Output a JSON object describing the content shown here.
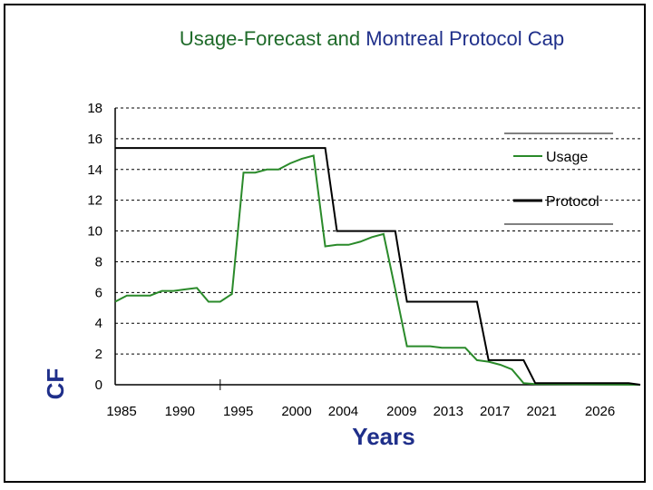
{
  "chart_data": {
    "type": "line",
    "title": "Usage-Forecast and Montreal Protocol Cap",
    "title_parts": [
      {
        "text": "Usage-Forecast and ",
        "color": "#1f6b2a"
      },
      {
        "text": "Montreal Protocol Cap",
        "color": "#1f2f8a"
      }
    ],
    "xlabel": "Years",
    "ylabel": "CF",
    "xlim": [
      1985,
      2030
    ],
    "ylim": [
      0,
      18
    ],
    "yticks": [
      0,
      2,
      4,
      6,
      8,
      10,
      12,
      14,
      16,
      18
    ],
    "xtick_labels": [
      {
        "x": 1985,
        "label": "1985"
      },
      {
        "x": 1990,
        "label": "1990"
      },
      {
        "x": 1995,
        "label": "1995"
      },
      {
        "x": 2000,
        "label": "2000"
      },
      {
        "x": 2004,
        "label": "2004"
      },
      {
        "x": 2009,
        "label": "2009"
      },
      {
        "x": 2013,
        "label": "2013"
      },
      {
        "x": 2017,
        "label": "2017"
      },
      {
        "x": 2021,
        "label": "2021"
      },
      {
        "x": 2026,
        "label": "2026"
      }
    ],
    "grid": true,
    "legend_position": "right",
    "series": [
      {
        "name": "Usage",
        "color": "#2a8a2a",
        "points": [
          [
            1985,
            5.4
          ],
          [
            1986,
            5.8
          ],
          [
            1987,
            5.8
          ],
          [
            1988,
            5.8
          ],
          [
            1989,
            6.1
          ],
          [
            1990,
            6.1
          ],
          [
            1991,
            6.2
          ],
          [
            1992,
            6.3
          ],
          [
            1993,
            5.4
          ],
          [
            1994,
            5.4
          ],
          [
            1995,
            5.9
          ],
          [
            1996,
            13.8
          ],
          [
            1997,
            13.8
          ],
          [
            1998,
            14.0
          ],
          [
            1999,
            14.0
          ],
          [
            2000,
            14.4
          ],
          [
            2001,
            14.7
          ],
          [
            2002,
            14.9
          ],
          [
            2003,
            9.0
          ],
          [
            2004,
            9.1
          ],
          [
            2005,
            9.1
          ],
          [
            2006,
            9.3
          ],
          [
            2007,
            9.6
          ],
          [
            2008,
            9.8
          ],
          [
            2009,
            6.2
          ],
          [
            2010,
            2.5
          ],
          [
            2011,
            2.5
          ],
          [
            2012,
            2.5
          ],
          [
            2013,
            2.4
          ],
          [
            2014,
            2.4
          ],
          [
            2015,
            2.4
          ],
          [
            2016,
            1.6
          ],
          [
            2017,
            1.5
          ],
          [
            2018,
            1.3
          ],
          [
            2019,
            1.0
          ],
          [
            2020,
            0.1
          ],
          [
            2021,
            0.05
          ],
          [
            2030,
            0.0
          ]
        ]
      },
      {
        "name": "Protocol",
        "color": "#000000",
        "points": [
          [
            1985,
            15.4
          ],
          [
            2003,
            15.4
          ],
          [
            2004,
            10.0
          ],
          [
            2009,
            10.0
          ],
          [
            2010,
            5.4
          ],
          [
            2016,
            5.4
          ],
          [
            2017,
            1.6
          ],
          [
            2020,
            1.6
          ],
          [
            2021,
            0.1
          ],
          [
            2029,
            0.1
          ],
          [
            2030,
            0.0
          ]
        ]
      }
    ]
  }
}
